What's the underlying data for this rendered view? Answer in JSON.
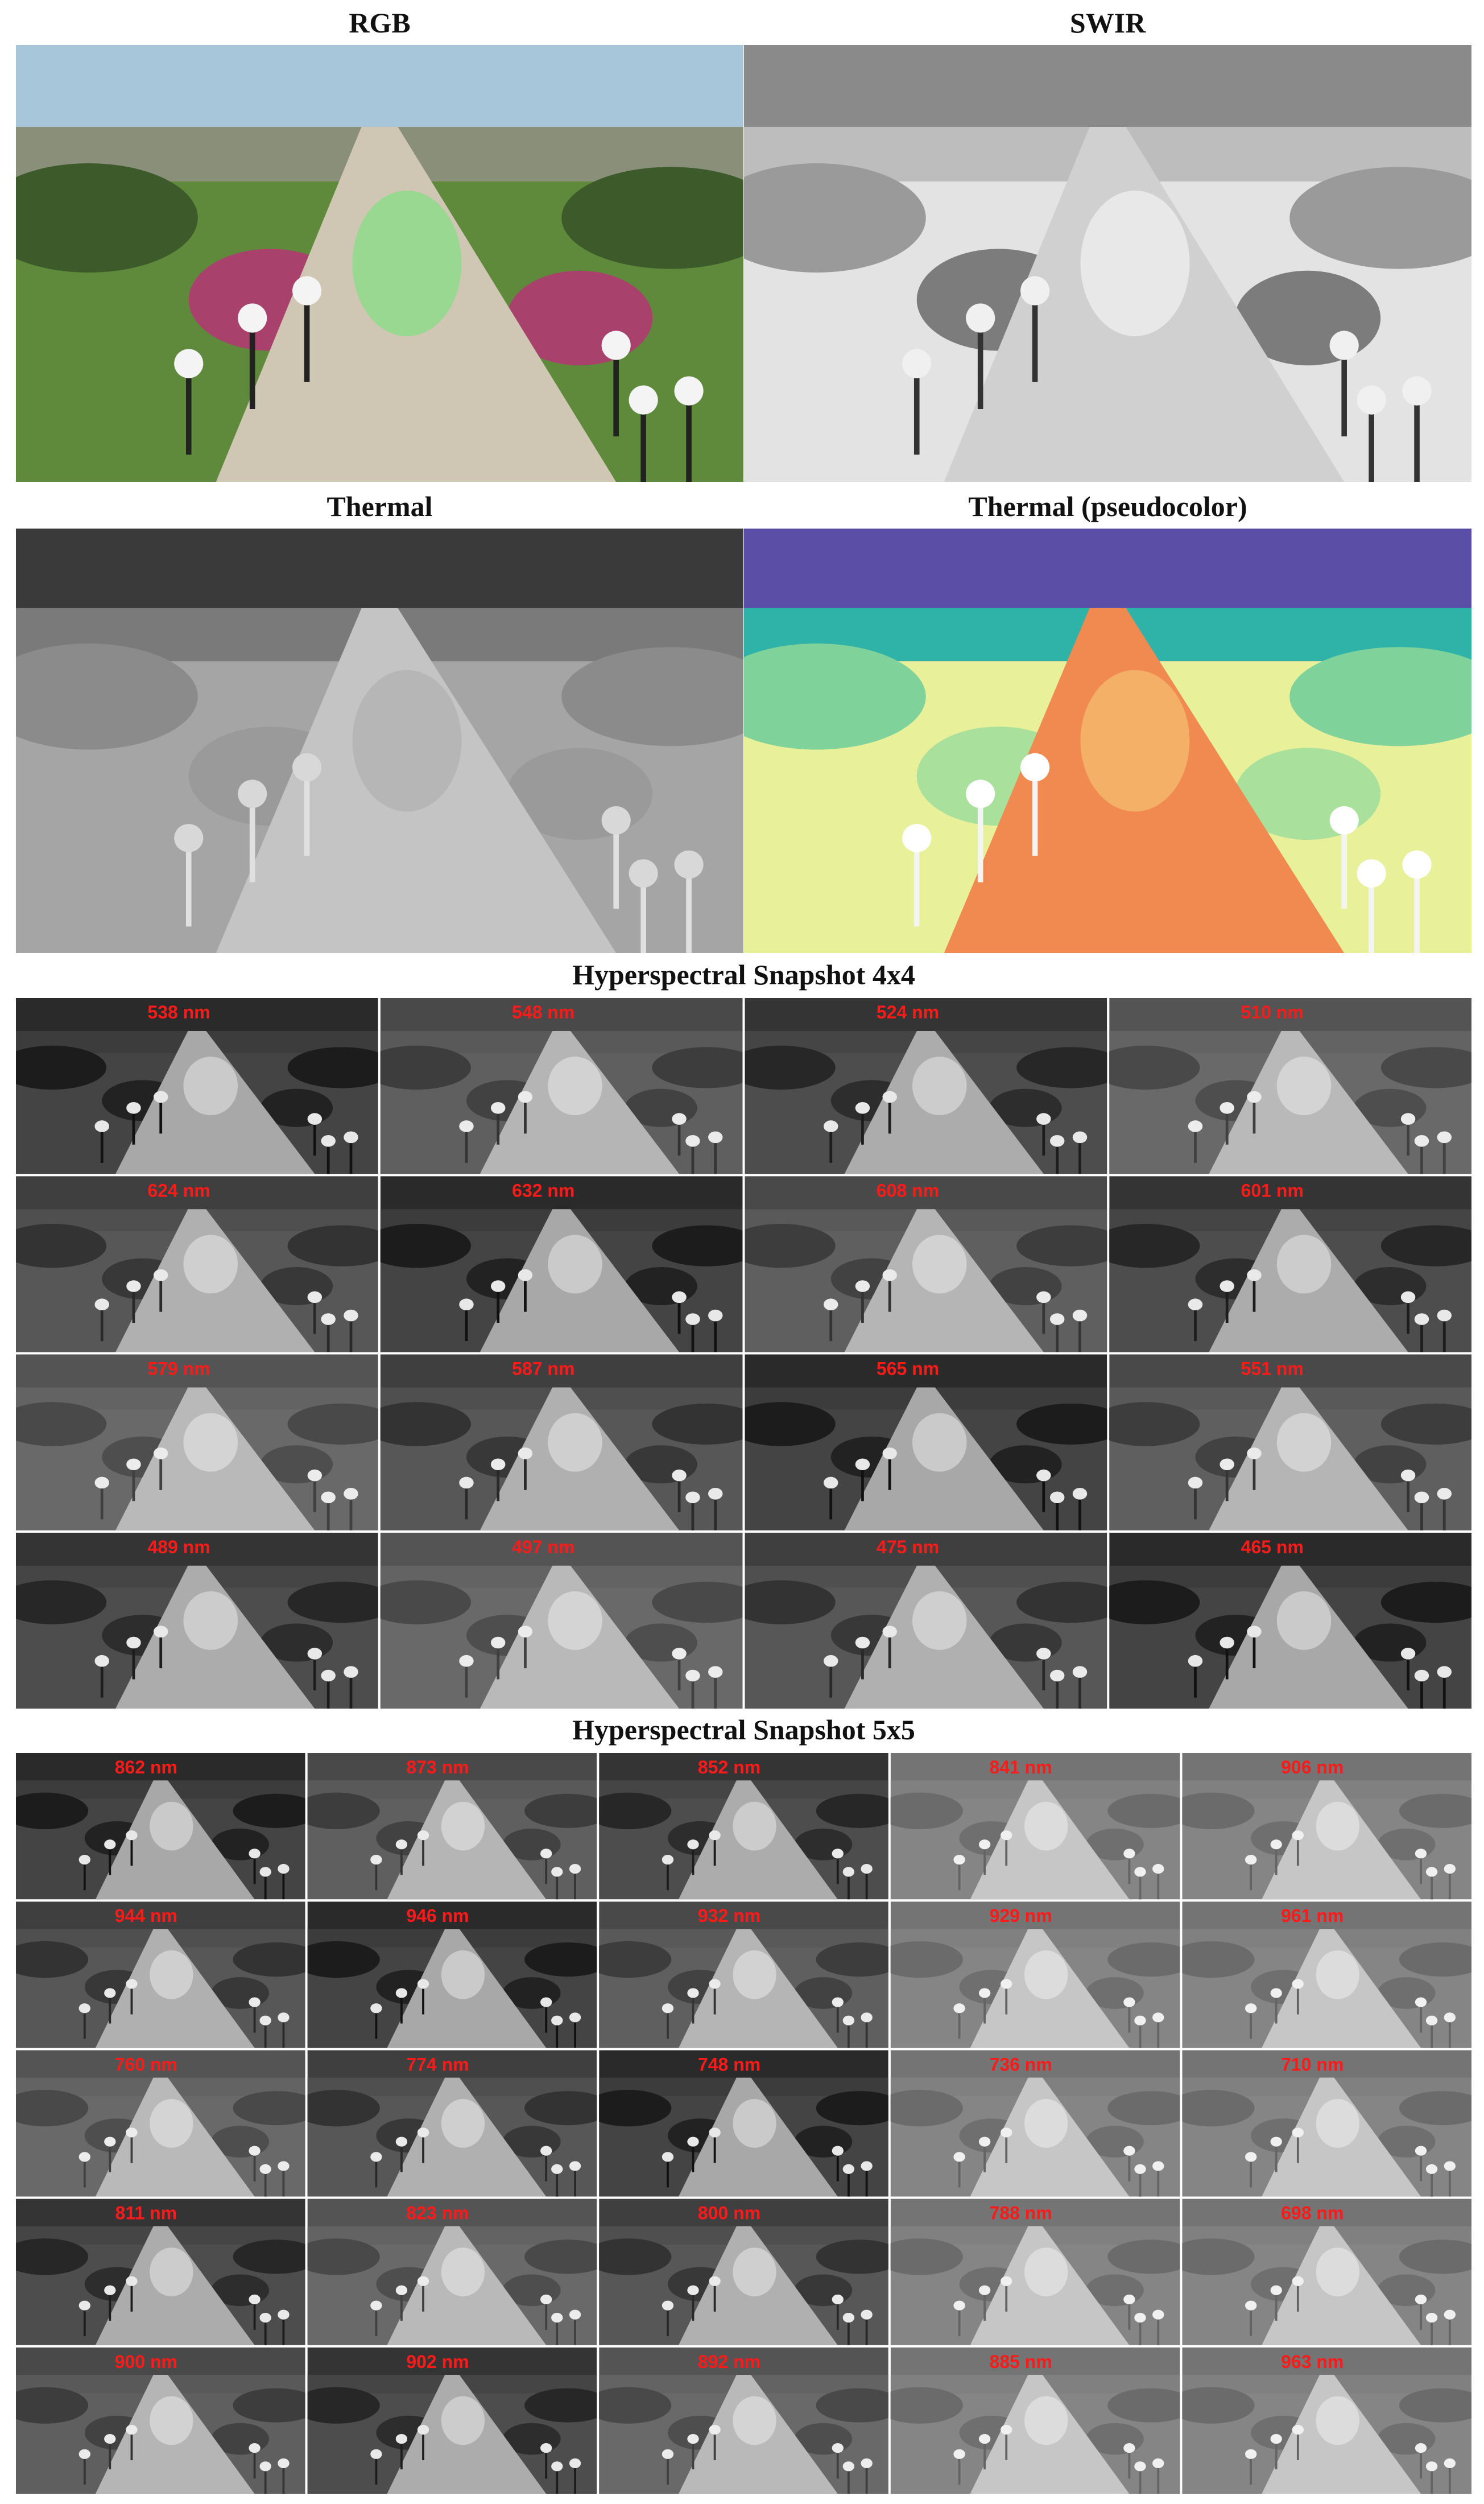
{
  "panels": [
    {
      "title": "RGB"
    },
    {
      "title": "SWIR"
    },
    {
      "title": "Thermal"
    },
    {
      "title": "Thermal (pseudocolor)"
    }
  ],
  "grids": [
    {
      "title": "Hyperspectral Snapshot 4x4",
      "bands": [
        [
          "538 nm",
          "548 nm",
          "524 nm",
          "510 nm"
        ],
        [
          "624 nm",
          "632 nm",
          "608 nm",
          "601 nm"
        ],
        [
          "579 nm",
          "587 nm",
          "565 nm",
          "551 nm"
        ],
        [
          "489 nm",
          "497 nm",
          "475 nm",
          "465 nm"
        ]
      ]
    },
    {
      "title": "Hyperspectral Snapshot 5x5",
      "bands": [
        [
          "862 nm",
          "873 nm",
          "852 nm",
          "841 nm",
          "906 nm"
        ],
        [
          "944 nm",
          "946 nm",
          "932 nm",
          "929 nm",
          "961 nm"
        ],
        [
          "760 nm",
          "774 nm",
          "748 nm",
          "736 nm",
          "710 nm"
        ],
        [
          "811 nm",
          "823 nm",
          "800 nm",
          "788 nm",
          "698 nm"
        ],
        [
          "900 nm",
          "902 nm",
          "892 nm",
          "885 nm",
          "963 nm"
        ]
      ]
    }
  ]
}
